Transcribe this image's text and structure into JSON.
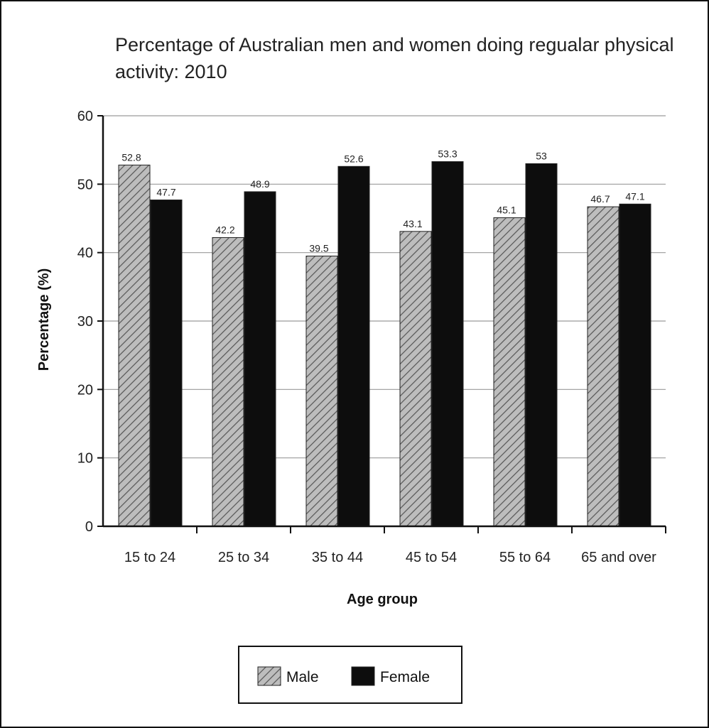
{
  "chart_data": {
    "type": "bar",
    "title": "Percentage of Australian men and women doing regualar physical activity: 2010",
    "xlabel": "Age group",
    "ylabel": "Percentage (%)",
    "ylim": [
      0,
      60
    ],
    "yticks": [
      "0",
      "10",
      "20",
      "30",
      "40",
      "50",
      "60"
    ],
    "categories": [
      "15 to 24",
      "25 to 34",
      "35 to 44",
      "45 to 54",
      "55 to 64",
      "65 and over"
    ],
    "series": [
      {
        "name": "Male",
        "values": [
          52.8,
          42.2,
          39.5,
          43.1,
          45.1,
          46.7
        ],
        "labels": [
          "52.8",
          "42.2",
          "39.5",
          "43.1",
          "45.1",
          "46.7"
        ],
        "pattern": "hatched",
        "color": "#b8b8b8"
      },
      {
        "name": "Female",
        "values": [
          47.7,
          48.9,
          52.6,
          53.3,
          53,
          47.1
        ],
        "labels": [
          "47.7",
          "48.9",
          "52.6",
          "53.3",
          "53",
          "47.1"
        ],
        "pattern": "solid",
        "color": "#0d0d0d"
      }
    ],
    "grid": true,
    "legend": "bottom"
  }
}
